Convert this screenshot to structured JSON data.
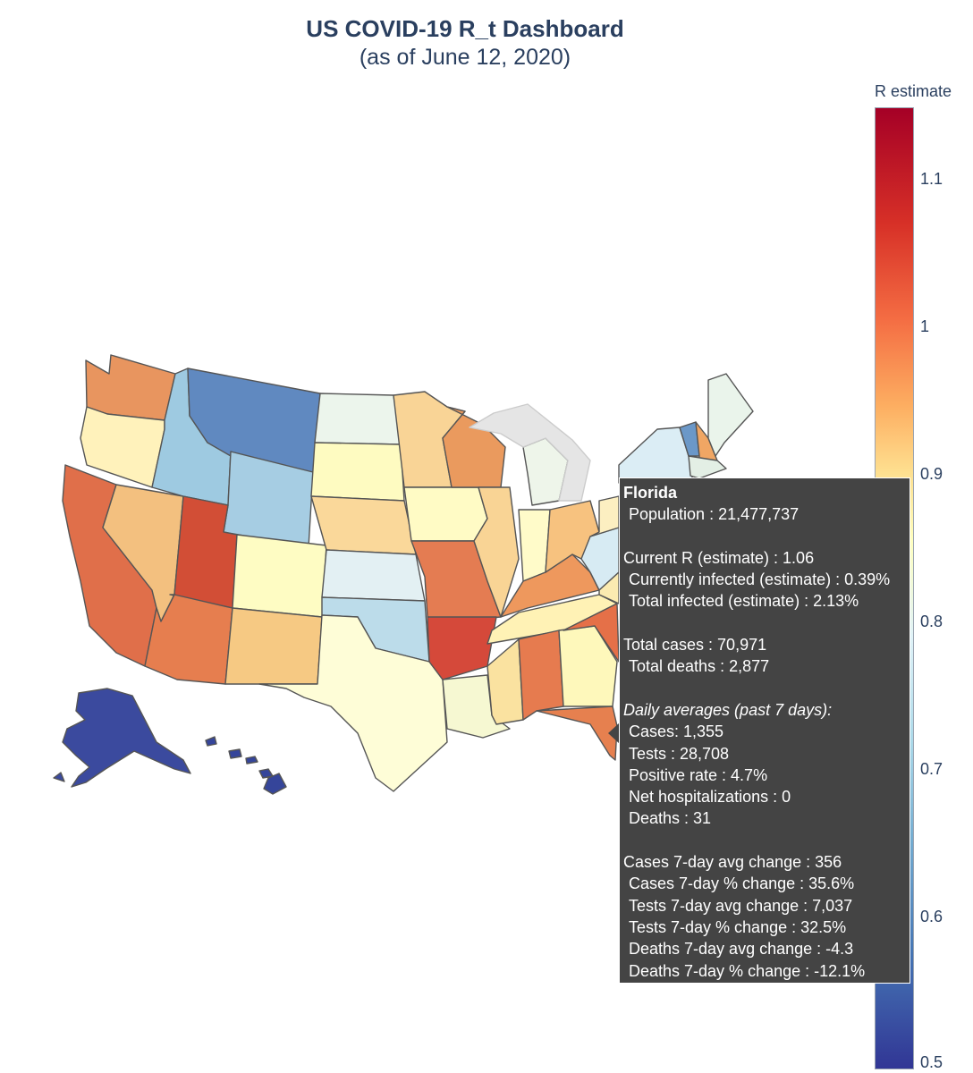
{
  "header": {
    "title": "US COVID-19 R_t Dashboard",
    "subtitle": "(as of June 12, 2020)"
  },
  "colorbar": {
    "title": "R estimate",
    "ticks": [
      "1.1",
      "1",
      "0.9",
      "0.8",
      "0.7",
      "0.6",
      "0.5"
    ],
    "range": [
      0.5,
      1.15
    ],
    "colors": [
      "#313695",
      "#4575b4",
      "#74add1",
      "#abd9e9",
      "#e0f3f8",
      "#ffffbf",
      "#fee090",
      "#fdae61",
      "#f46d43",
      "#d73027",
      "#a50026"
    ]
  },
  "map": {
    "hover_state": "Florida",
    "state_fills": {
      "WA": "#e8955f",
      "OR": "#fff2bb",
      "CA": "#e06f4a",
      "NV": "#f3c07f",
      "ID": "#9ecae1",
      "MT": "#6089c0",
      "WY": "#a6cde3",
      "UT": "#d24e36",
      "AZ": "#e67e4f",
      "CO": "#fefcc3",
      "NM": "#f6c983",
      "ND": "#ecf5ec",
      "SD": "#fefbc1",
      "NE": "#fad89a",
      "KS": "#e3f0f3",
      "OK": "#bcdcea",
      "TX": "#fefdd7",
      "MN": "#f9d496",
      "IA": "#fffbc5",
      "MO": "#e47c52",
      "AR": "#d5493a",
      "LA": "#f6f8d2",
      "WI": "#ea9a5e",
      "IL": "#f9d495",
      "MS": "#fae2a0",
      "MI": "#eef5ea",
      "IN": "#fffbc9",
      "KY": "#ee985d",
      "TN": "#fff2b5",
      "AL": "#e67b4f",
      "GA": "#fef8bb",
      "FL": "#e6804f",
      "OH": "#f7c27f",
      "WV": "#d7ebf3",
      "SC": "#ebe2a0",
      "NC": "#e57048",
      "VA": "#fbebb1",
      "PA": "#fcefc1",
      "NY": "#dbedf5",
      "VT": "#6b98c8",
      "NH": "#f0a664",
      "ME": "#eaf4eb",
      "MA": "#e3efe5",
      "AK": "#3b4a9e",
      "HI": "#35459a",
      "lakes": "#e5e5e5"
    }
  },
  "tooltip": {
    "state": "Florida",
    "population": "Population : 21,477,737",
    "current_r": "Current R (estimate) : 1.06",
    "currently_infected": "Currently infected (estimate) : 0.39%",
    "total_infected": "Total infected (estimate) : 2.13%",
    "total_cases": "Total cases : 70,971",
    "total_deaths": "Total deaths : 2,877",
    "daily_header": "Daily averages (past 7 days):",
    "daily_cases": "Cases: 1,355",
    "daily_tests": "Tests : 28,708",
    "positive_rate": "Positive rate : 4.7%",
    "net_hosp": "Net hospitalizations : 0",
    "daily_deaths": "Deaths : 31",
    "cases_avg_change": "Cases 7-day avg change : 356",
    "cases_pct_change": "Cases 7-day % change : 35.6%",
    "tests_avg_change": "Tests 7-day avg change : 7,037",
    "tests_pct_change": "Tests 7-day % change : 32.5%",
    "deaths_avg_change": "Deaths 7-day avg change : -4.3",
    "deaths_pct_change": "Deaths 7-day % change : -12.1%"
  }
}
